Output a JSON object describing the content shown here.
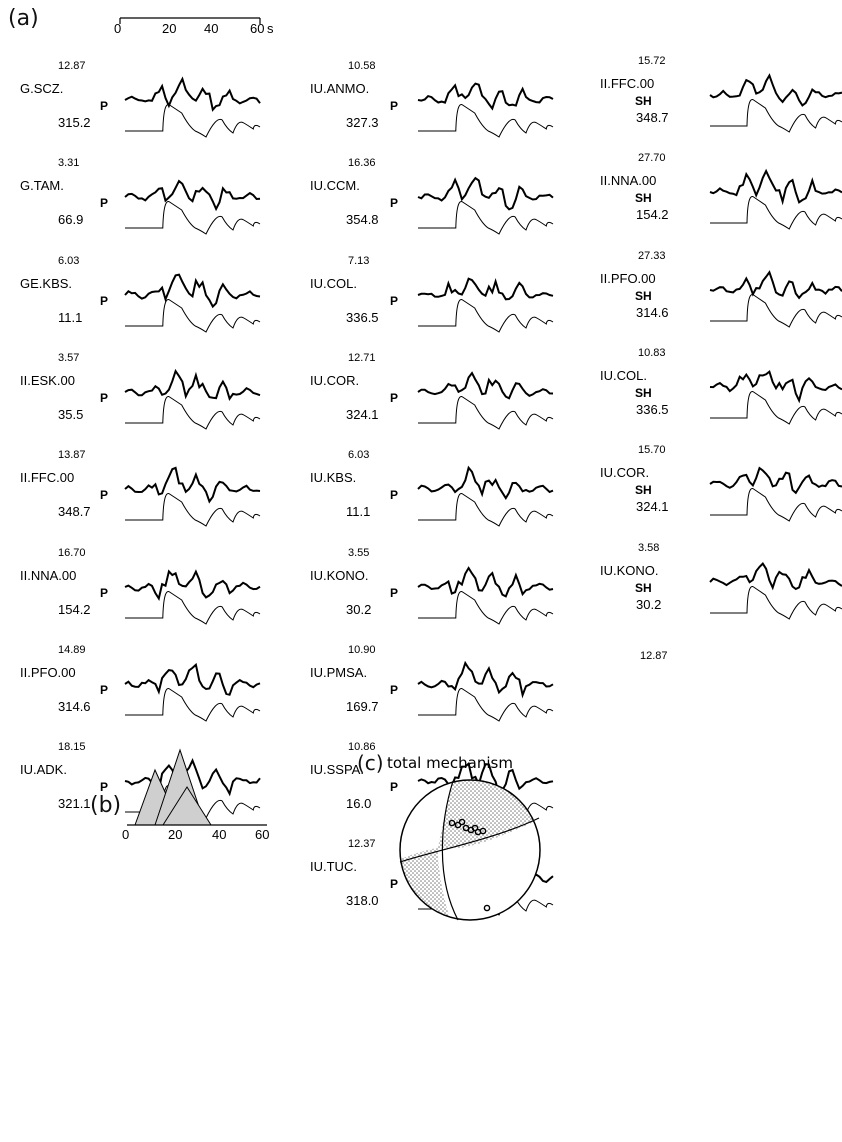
{
  "panel_a": {
    "label": "(a)",
    "scale_bar": {
      "ticks": [
        "0",
        "20",
        "40",
        "60"
      ],
      "unit": "s"
    },
    "columns": [
      [
        {
          "num": "12.87",
          "station": "G.SCZ.",
          "phase": "P",
          "az": "315.2"
        },
        {
          "num": "3.31",
          "station": "G.TAM.",
          "phase": "P",
          "az": "66.9"
        },
        {
          "num": "6.03",
          "station": "GE.KBS.",
          "phase": "P",
          "az": "11.1"
        },
        {
          "num": "3.57",
          "station": "II.ESK.00",
          "phase": "P",
          "az": "35.5"
        },
        {
          "num": "13.87",
          "station": "II.FFC.00",
          "phase": "P",
          "az": "348.7"
        },
        {
          "num": "16.70",
          "station": "II.NNA.00",
          "phase": "P",
          "az": "154.2"
        },
        {
          "num": "14.89",
          "station": "II.PFO.00",
          "phase": "P",
          "az": "314.6"
        },
        {
          "num": "18.15",
          "station": "IU.ADK.",
          "phase": "P",
          "az": "321.1"
        }
      ],
      [
        {
          "num": "10.58",
          "station": "IU.ANMO.",
          "phase": "P",
          "az": "327.3"
        },
        {
          "num": "16.36",
          "station": "IU.CCM.",
          "phase": "P",
          "az": "354.8"
        },
        {
          "num": "7.13",
          "station": "IU.COL.",
          "phase": "P",
          "az": "336.5"
        },
        {
          "num": "12.71",
          "station": "IU.COR.",
          "phase": "P",
          "az": "324.1"
        },
        {
          "num": "6.03",
          "station": "IU.KBS.",
          "phase": "P",
          "az": "11.1"
        },
        {
          "num": "3.55",
          "station": "IU.KONO.",
          "phase": "P",
          "az": "30.2"
        },
        {
          "num": "10.90",
          "station": "IU.PMSA.",
          "phase": "P",
          "az": "169.7"
        },
        {
          "num": "10.86",
          "station": "IU.SSPA.",
          "phase": "P",
          "az": "16.0"
        },
        {
          "num": "12.37",
          "station": "IU.TUC.",
          "phase": "P",
          "az": "318.0"
        }
      ],
      [
        {
          "num": "15.72",
          "station": "II.FFC.00",
          "phase": "SH",
          "az": "348.7"
        },
        {
          "num": "27.70",
          "station": "II.NNA.00",
          "phase": "SH",
          "az": "154.2"
        },
        {
          "num": "27.33",
          "station": "II.PFO.00",
          "phase": "SH",
          "az": "314.6"
        },
        {
          "num": "10.83",
          "station": "IU.COL.",
          "phase": "SH",
          "az": "336.5"
        },
        {
          "num": "15.70",
          "station": "IU.COR.",
          "phase": "SH",
          "az": "324.1"
        },
        {
          "num": "3.58",
          "station": "IU.KONO.",
          "phase": "SH",
          "az": "30.2"
        }
      ]
    ],
    "trailing_number": "12.87"
  },
  "panel_b": {
    "label": "(b)",
    "ticks": [
      "0",
      "20",
      "40",
      "60"
    ]
  },
  "panel_c": {
    "label": "(c)",
    "title": "total mechanism"
  },
  "colors": {
    "ink": "#000000",
    "fill_light": "#cfcfcf",
    "stipple": "#8a8a8a"
  }
}
